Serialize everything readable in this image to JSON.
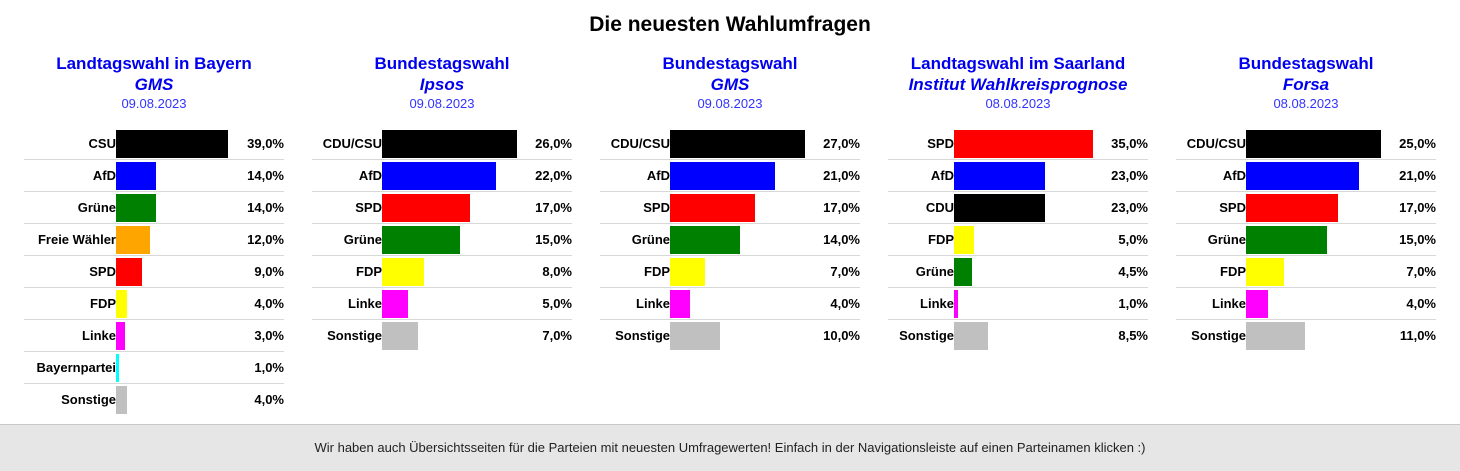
{
  "page": {
    "title": "Die neuesten Wahlumfragen"
  },
  "footer": {
    "text": "Wir haben auch Übersichtsseiten für die Parteien mit neuesten Umfragewerten! Einfach in der Navigationsleiste auf einen Parteinamen klicken :)"
  },
  "colors": {
    "heading_blue": "#0000ee",
    "CSU": "#000000",
    "CDU/CSU": "#000000",
    "CDU": "#000000",
    "AfD": "#0000ff",
    "Grüne": "#008000",
    "Freie Wähler": "#ffa500",
    "SPD": "#ff0000",
    "FDP": "#ffff00",
    "Linke": "#ff00ff",
    "Bayernpartei": "#00ffff",
    "Sonstige": "#c0c0c0"
  },
  "chart_data": [
    {
      "type": "bar",
      "orientation": "horizontal",
      "title": "Landtagswahl in Bayern",
      "institute": "GMS",
      "date": "09.08.2023",
      "categories": [
        "CSU",
        "AfD",
        "Grüne",
        "Freie Wähler",
        "SPD",
        "FDP",
        "Linke",
        "Bayernpartei",
        "Sonstige"
      ],
      "values": [
        39.0,
        14.0,
        14.0,
        12.0,
        9.0,
        4.0,
        3.0,
        1.0,
        4.0
      ],
      "labels": [
        "39,0%",
        "14,0%",
        "14,0%",
        "12,0%",
        "9,0%",
        "4,0%",
        "3,0%",
        "1,0%",
        "4,0%"
      ],
      "unit": "%"
    },
    {
      "type": "bar",
      "orientation": "horizontal",
      "title": "Bundestagswahl",
      "institute": "Ipsos",
      "date": "09.08.2023",
      "categories": [
        "CDU/CSU",
        "AfD",
        "SPD",
        "Grüne",
        "FDP",
        "Linke",
        "Sonstige"
      ],
      "values": [
        26.0,
        22.0,
        17.0,
        15.0,
        8.0,
        5.0,
        7.0
      ],
      "labels": [
        "26,0%",
        "22,0%",
        "17,0%",
        "15,0%",
        "8,0%",
        "5,0%",
        "7,0%"
      ],
      "unit": "%"
    },
    {
      "type": "bar",
      "orientation": "horizontal",
      "title": "Bundestagswahl",
      "institute": "GMS",
      "date": "09.08.2023",
      "categories": [
        "CDU/CSU",
        "AfD",
        "SPD",
        "Grüne",
        "FDP",
        "Linke",
        "Sonstige"
      ],
      "values": [
        27.0,
        21.0,
        17.0,
        14.0,
        7.0,
        4.0,
        10.0
      ],
      "labels": [
        "27,0%",
        "21,0%",
        "17,0%",
        "14,0%",
        "7,0%",
        "4,0%",
        "10,0%"
      ],
      "unit": "%"
    },
    {
      "type": "bar",
      "orientation": "horizontal",
      "title": "Landtagswahl im Saarland",
      "institute": "Institut Wahlkreisprognose",
      "date": "08.08.2023",
      "categories": [
        "SPD",
        "AfD",
        "CDU",
        "FDP",
        "Grüne",
        "Linke",
        "Sonstige"
      ],
      "values": [
        35.0,
        23.0,
        23.0,
        5.0,
        4.5,
        1.0,
        8.5
      ],
      "labels": [
        "35,0%",
        "23,0%",
        "23,0%",
        "5,0%",
        "4,5%",
        "1,0%",
        "8,5%"
      ],
      "unit": "%"
    },
    {
      "type": "bar",
      "orientation": "horizontal",
      "title": "Bundestagswahl",
      "institute": "Forsa",
      "date": "08.08.2023",
      "categories": [
        "CDU/CSU",
        "AfD",
        "SPD",
        "Grüne",
        "FDP",
        "Linke",
        "Sonstige"
      ],
      "values": [
        25.0,
        21.0,
        17.0,
        15.0,
        7.0,
        4.0,
        11.0
      ],
      "labels": [
        "25,0%",
        "21,0%",
        "17,0%",
        "15,0%",
        "7,0%",
        "4,0%",
        "11,0%"
      ],
      "unit": "%"
    }
  ]
}
